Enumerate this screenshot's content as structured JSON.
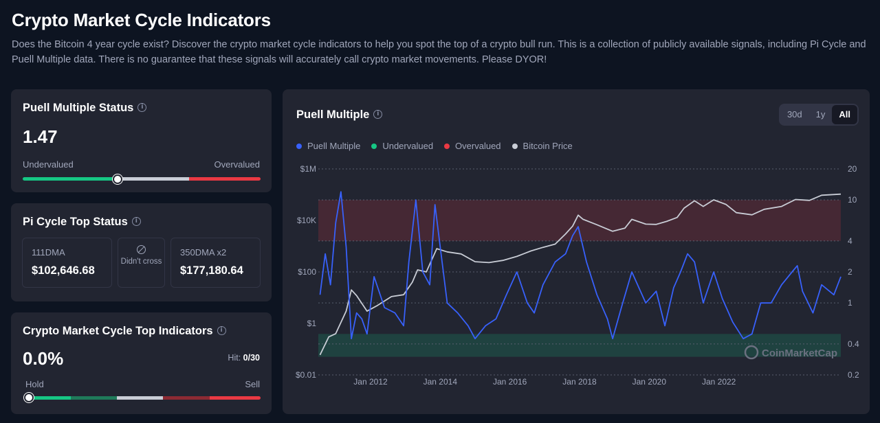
{
  "page": {
    "title": "Crypto Market Cycle Indicators",
    "description": "Does the Bitcoin 4 year cycle exist? Discover the crypto market cycle indicators to help you spot the top of a crypto bull run. This is a collection of publicly available signals, including Pi Cycle and Puell Multiple data. There is no guarantee that these signals will accurately call crypto market movements. Please DYOR!"
  },
  "puell_status": {
    "title": "Puell Multiple Status",
    "info_icon": "info-icon",
    "value": "1.47",
    "low_label": "Undervalued",
    "high_label": "Overvalued",
    "position_fraction": 0.4,
    "segments": [
      {
        "color": "#16c784",
        "share": 0.38
      },
      {
        "color": "#c9cdd6",
        "share": 0.32
      },
      {
        "color": "#ea3943",
        "share": 0.3
      }
    ]
  },
  "pi_cycle": {
    "title": "Pi Cycle Top Status",
    "dma111_label": "111DMA",
    "dma111_value": "$102,646.68",
    "cross_icon": "ban-icon",
    "cross_status": "Didn't cross",
    "dma350_label": "350DMA x2",
    "dma350_value": "$177,180.64"
  },
  "top_indicators": {
    "title": "Crypto Market Cycle Top Indicators",
    "value": "0.0%",
    "hit_label": "Hit:",
    "hit_value": "0/30",
    "low_label": "Hold",
    "high_label": "Sell",
    "position_fraction": 0.0,
    "segments": [
      {
        "color": "#16c784",
        "share": 0.18
      },
      {
        "color": "#1f7a5a",
        "share": 0.2
      },
      {
        "color": "#c9cdd6",
        "share": 0.2
      },
      {
        "color": "#8c2a33",
        "share": 0.2
      },
      {
        "color": "#ea3943",
        "share": 0.22
      }
    ]
  },
  "chart": {
    "title": "Puell Multiple",
    "ranges": [
      "30d",
      "1y",
      "All"
    ],
    "active_range": "All",
    "watermark": "CoinMarketCap",
    "colors": {
      "puell": "#3861fb",
      "price": "#c9cdd6",
      "under": "#16c784",
      "over": "#ea3943",
      "card": "#222531"
    }
  },
  "chart_data": {
    "type": "line",
    "title": "Puell Multiple",
    "legend": [
      "Puell Multiple",
      "Undervalued",
      "Overvalued",
      "Bitcoin Price"
    ],
    "legend_colors": [
      "#3861fb",
      "#16c784",
      "#ea3943",
      "#c9cdd6"
    ],
    "left_axis": {
      "label": "Bitcoin Price",
      "scale": "log",
      "ticks": [
        "$0.01",
        "$1",
        "$100",
        "$10K",
        "$1M"
      ],
      "range": [
        0.01,
        1000000
      ]
    },
    "right_axis": {
      "label": "Puell Multiple",
      "scale": "log",
      "ticks": [
        "0.2",
        "0.4",
        "1",
        "2",
        "4",
        "10",
        "20"
      ],
      "range": [
        0.2,
        20
      ]
    },
    "x_axis": {
      "ticks": [
        "Jan 2012",
        "Jan 2014",
        "Jan 2016",
        "Jan 2018",
        "Jan 2020",
        "Jan 2022"
      ],
      "range": [
        2010.5,
        2025.5
      ]
    },
    "zones": {
      "undervalued": [
        0.3,
        0.5
      ],
      "overvalued": [
        4,
        10
      ]
    },
    "series": [
      {
        "name": "Bitcoin Price",
        "x": [
          2010.55,
          2010.8,
          2011.0,
          2011.3,
          2011.45,
          2011.6,
          2011.9,
          2012.2,
          2012.6,
          2012.95,
          2013.2,
          2013.35,
          2013.6,
          2013.9,
          2014.2,
          2014.6,
          2015.0,
          2015.4,
          2015.8,
          2016.2,
          2016.6,
          2016.95,
          2017.3,
          2017.6,
          2017.8,
          2017.96,
          2018.1,
          2018.5,
          2018.95,
          2019.3,
          2019.5,
          2019.9,
          2020.2,
          2020.5,
          2020.8,
          2021.0,
          2021.3,
          2021.55,
          2021.85,
          2022.2,
          2022.5,
          2022.95,
          2023.3,
          2023.8,
          2024.2,
          2024.6,
          2024.95,
          2025.5
        ],
        "values": [
          0.06,
          0.3,
          0.4,
          3,
          20,
          12,
          3,
          5,
          11,
          13,
          40,
          120,
          100,
          800,
          600,
          500,
          250,
          230,
          280,
          400,
          650,
          900,
          1200,
          3000,
          6000,
          16000,
          11000,
          6800,
          3800,
          5000,
          11000,
          7200,
          7000,
          9200,
          13000,
          30000,
          58000,
          35000,
          63000,
          42000,
          20000,
          16500,
          27000,
          35000,
          65000,
          60000,
          95000,
          105000
        ]
      },
      {
        "name": "Puell Multiple",
        "x": [
          2010.55,
          2010.7,
          2010.85,
          2011.0,
          2011.15,
          2011.3,
          2011.45,
          2011.6,
          2011.75,
          2011.9,
          2012.1,
          2012.4,
          2012.7,
          2012.95,
          2013.1,
          2013.3,
          2013.5,
          2013.7,
          2013.85,
          2014.0,
          2014.2,
          2014.5,
          2014.8,
          2015.0,
          2015.3,
          2015.6,
          2015.9,
          2016.2,
          2016.5,
          2016.7,
          2016.95,
          2017.3,
          2017.6,
          2017.8,
          2017.96,
          2018.2,
          2018.5,
          2018.8,
          2018.95,
          2019.2,
          2019.5,
          2019.9,
          2020.2,
          2020.45,
          2020.7,
          2020.9,
          2021.1,
          2021.3,
          2021.55,
          2021.85,
          2022.1,
          2022.4,
          2022.7,
          2022.95,
          2023.2,
          2023.5,
          2023.8,
          2024.1,
          2024.25,
          2024.4,
          2024.7,
          2024.95,
          2025.3,
          2025.5
        ],
        "values": [
          1.2,
          3.0,
          1.5,
          6.0,
          12.0,
          3.5,
          0.45,
          0.8,
          0.7,
          0.5,
          1.8,
          0.9,
          0.8,
          0.6,
          2.5,
          10.0,
          2.0,
          1.5,
          9.0,
          3.5,
          1.0,
          0.8,
          0.6,
          0.45,
          0.6,
          0.7,
          1.2,
          2.0,
          1.0,
          0.8,
          1.5,
          2.5,
          3.0,
          4.5,
          5.5,
          2.5,
          1.2,
          0.7,
          0.45,
          0.9,
          2.0,
          1.0,
          1.3,
          0.6,
          1.4,
          2.0,
          3.0,
          2.5,
          1.0,
          2.0,
          1.1,
          0.65,
          0.45,
          0.5,
          1.0,
          1.0,
          1.5,
          2.0,
          2.3,
          1.3,
          0.8,
          1.5,
          1.2,
          1.8
        ]
      }
    ]
  }
}
